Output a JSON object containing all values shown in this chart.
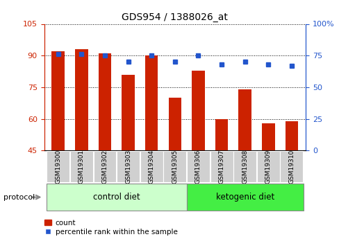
{
  "title": "GDS954 / 1388026_at",
  "samples": [
    "GSM19300",
    "GSM19301",
    "GSM19302",
    "GSM19303",
    "GSM19304",
    "GSM19305",
    "GSM19306",
    "GSM19307",
    "GSM19308",
    "GSM19309",
    "GSM19310"
  ],
  "red_values": [
    92,
    93,
    91,
    81,
    90,
    70,
    83,
    60,
    74,
    58,
    59
  ],
  "blue_percentiles": [
    76,
    76,
    75,
    70,
    75,
    70,
    75,
    68,
    70,
    68,
    67
  ],
  "y_min": 45,
  "y_max": 105,
  "y_ticks": [
    45,
    60,
    75,
    90,
    105
  ],
  "right_y_ticks": [
    0,
    25,
    50,
    75,
    100
  ],
  "right_y_labels": [
    "0",
    "25",
    "50",
    "75",
    "100%"
  ],
  "bar_color": "#cc2200",
  "blue_color": "#2255cc",
  "bg_color_control": "#ccffcc",
  "bg_color_ketogenic": "#44ee44",
  "sample_box_color": "#d0d0d0",
  "tick_color_left": "#cc2200",
  "tick_color_right": "#2255cc",
  "legend_count": "count",
  "legend_percentile": "percentile rank within the sample",
  "protocol_label": "protocol",
  "n_control": 6,
  "n_ketogenic": 5
}
